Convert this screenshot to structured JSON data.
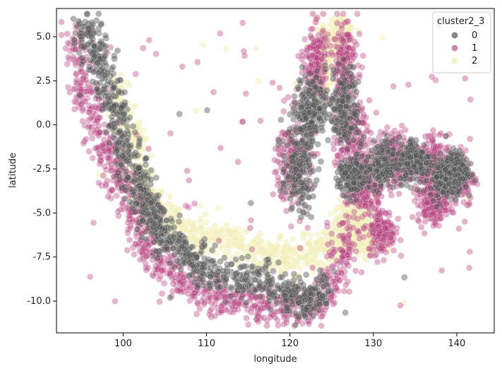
{
  "chart_data": {
    "type": "scatter",
    "title": "",
    "xlabel": "longitude",
    "ylabel": "latitude",
    "xlim": [
      92,
      144.5
    ],
    "ylim": [
      -11.8,
      6.6
    ],
    "xticks": [
      100,
      110,
      120,
      130,
      140
    ],
    "yticks": [
      5.0,
      2.5,
      0.0,
      -2.5,
      -5.0,
      -7.5,
      -10.0
    ],
    "grid": false,
    "legend": {
      "title": "cluster2_3",
      "placement": "top-right",
      "entries": [
        "0",
        "1",
        "2"
      ]
    },
    "series": [
      {
        "name": "0",
        "color": "#555555",
        "opacity": 0.45,
        "path": [
          [
            95.5,
            5.8
          ],
          [
            96.5,
            4.5
          ],
          [
            97.5,
            3.2
          ],
          [
            98.5,
            1.6
          ],
          [
            99.5,
            0.0
          ],
          [
            100.5,
            -1.6
          ],
          [
            101.5,
            -3.0
          ],
          [
            102.5,
            -4.2
          ],
          [
            103.5,
            -5.2
          ],
          [
            104.5,
            -6.0
          ],
          [
            106,
            -6.8
          ],
          [
            108,
            -7.6
          ],
          [
            110,
            -8.2
          ],
          [
            113,
            -8.6
          ],
          [
            116,
            -8.9
          ],
          [
            119,
            -9.3
          ],
          [
            121,
            -9.8
          ],
          [
            123,
            -10.2
          ],
          [
            124,
            -9.0
          ]
        ],
        "clusters": [
          [
            121,
            -2.5,
            1.8,
            2.2
          ],
          [
            122.5,
            1.0,
            1.6,
            1.8
          ],
          [
            126.5,
            1.0,
            1.6,
            2.0
          ],
          [
            127.5,
            -3.0,
            1.5,
            1.0
          ],
          [
            131,
            -2.3,
            1.8,
            1.2
          ],
          [
            135,
            -2.0,
            1.8,
            1.2
          ],
          [
            138.5,
            -3.0,
            1.6,
            1.0
          ],
          [
            140,
            -2.6,
            1.2,
            1.0
          ]
        ],
        "scatter_count": 8
      },
      {
        "name": "1",
        "color": "#b5407e",
        "opacity": 0.38,
        "path": [
          [
            94.5,
            5.2
          ],
          [
            95,
            3.0
          ],
          [
            96,
            1.0
          ],
          [
            97.5,
            -0.8
          ],
          [
            99,
            -2.5
          ],
          [
            100.5,
            -4.0
          ],
          [
            101.5,
            -5.5
          ],
          [
            103,
            -7.0
          ],
          [
            105,
            -8.3
          ],
          [
            108,
            -9.3
          ],
          [
            111,
            -9.8
          ],
          [
            114,
            -10.0
          ],
          [
            117,
            -10.2
          ],
          [
            120,
            -10.4
          ],
          [
            123,
            -10.3
          ],
          [
            125,
            -9.0
          ],
          [
            126.5,
            -7.0
          ],
          [
            127.5,
            -5.5
          ]
        ],
        "clusters": [
          [
            120.5,
            -2.0,
            2.0,
            2.5
          ],
          [
            123,
            3.5,
            1.2,
            2.0
          ],
          [
            126.5,
            3.5,
            1.5,
            2.2
          ],
          [
            127.5,
            -1.0,
            1.8,
            2.0
          ],
          [
            129,
            -3.5,
            1.8,
            1.3
          ],
          [
            132.5,
            -2.0,
            2.0,
            1.5
          ],
          [
            136.5,
            -2.3,
            2.0,
            1.5
          ],
          [
            140,
            -3.0,
            2.0,
            1.5
          ],
          [
            131,
            -6.0,
            1.5,
            1.2
          ],
          [
            137,
            -4.5,
            1.5,
            1.0
          ]
        ],
        "scatter_count": 90
      },
      {
        "name": "2",
        "color": "#f1eeb4",
        "opacity": 0.5,
        "path": [
          [
            99,
            2.5
          ],
          [
            100.5,
            0.0
          ],
          [
            101.5,
            -2.0
          ],
          [
            102.5,
            -3.5
          ],
          [
            104,
            -4.8
          ],
          [
            106,
            -5.8
          ],
          [
            108.5,
            -6.3
          ],
          [
            111,
            -6.5
          ],
          [
            114,
            -6.8
          ],
          [
            117,
            -7.2
          ],
          [
            119,
            -7.5
          ],
          [
            122,
            -7.5
          ],
          [
            124,
            -7.0
          ],
          [
            126,
            -6.5
          ],
          [
            127.5,
            -5.8
          ],
          [
            129,
            -4.5
          ]
        ],
        "clusters": [
          [
            124,
            3.5,
            1.0,
            2.0
          ],
          [
            126,
            5.0,
            1.2,
            1.0
          ],
          [
            127.5,
            -5.5,
            2.0,
            1.2
          ],
          [
            129.5,
            -6.5,
            1.5,
            0.8
          ]
        ],
        "scatter_count": 15
      }
    ]
  }
}
